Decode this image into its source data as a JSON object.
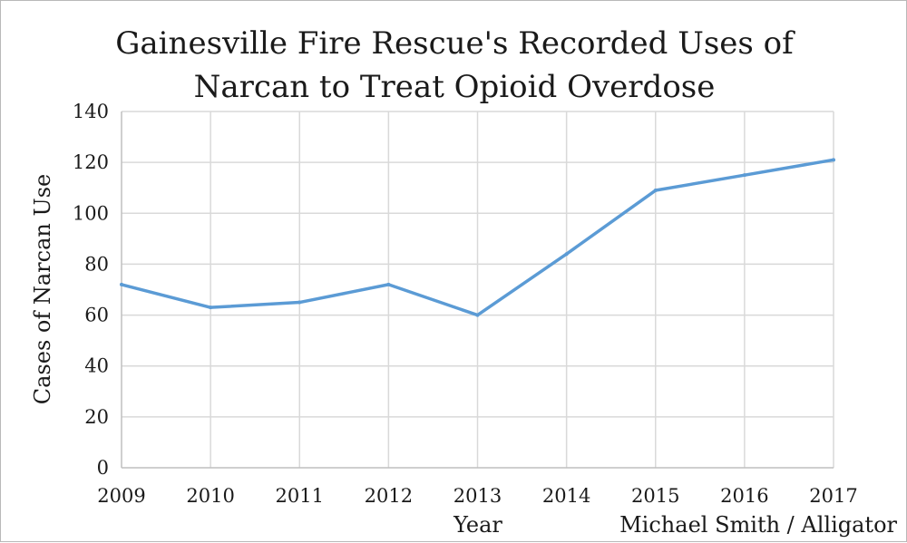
{
  "chart_data": {
    "type": "line",
    "title": [
      "Gainesville Fire Rescue's Recorded Uses of",
      "Narcan to Treat Opioid Overdose"
    ],
    "xlabel": "Year",
    "ylabel": "Cases of Narcan Use",
    "credit": "Michael Smith / Alligator",
    "x": [
      "2009",
      "2010",
      "2011",
      "2012",
      "2013",
      "2014",
      "2015",
      "2016",
      "2017"
    ],
    "series": [
      {
        "values": [
          72,
          63,
          65,
          72,
          60,
          84,
          109,
          115,
          121
        ],
        "color": "#5b9bd5"
      }
    ],
    "ylim": [
      0,
      140
    ],
    "yticks": [
      0,
      20,
      40,
      60,
      80,
      100,
      120,
      140
    ],
    "grid": true,
    "legend": "none"
  }
}
